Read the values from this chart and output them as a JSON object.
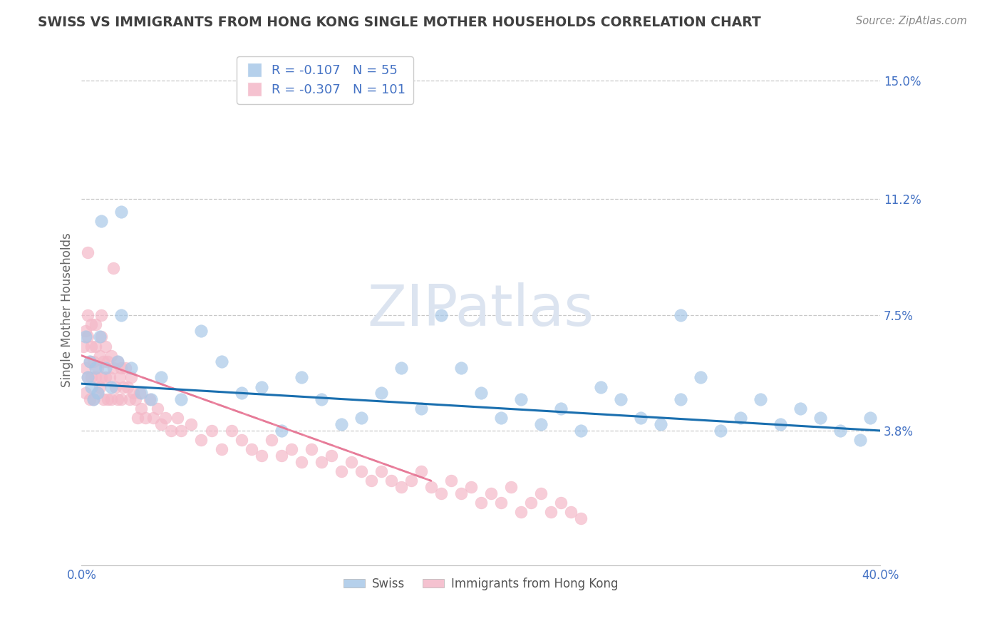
{
  "title": "SWISS VS IMMIGRANTS FROM HONG KONG SINGLE MOTHER HOUSEHOLDS CORRELATION CHART",
  "source": "Source: ZipAtlas.com",
  "ylabel": "Single Mother Households",
  "xlabel": "",
  "xlim": [
    0.0,
    0.4
  ],
  "ylim": [
    -0.005,
    0.158
  ],
  "yticks": [
    0.038,
    0.075,
    0.112,
    0.15
  ],
  "ytick_labels": [
    "3.8%",
    "7.5%",
    "11.2%",
    "15.0%"
  ],
  "xticks": [
    0.0,
    0.05,
    0.1,
    0.15,
    0.2,
    0.25,
    0.3,
    0.35,
    0.4
  ],
  "xtick_labels": [
    "0.0%",
    "",
    "",
    "",
    "",
    "",
    "",
    "",
    "40.0%"
  ],
  "swiss_R": -0.107,
  "swiss_N": 55,
  "hk_R": -0.307,
  "hk_N": 101,
  "swiss_color": "#a8c8e8",
  "hk_color": "#f4b8c8",
  "swiss_line_color": "#1a6faf",
  "hk_line_color": "#e87090",
  "hk_line_dashed_color": "#e0b0c0",
  "background_color": "#ffffff",
  "grid_color": "#c8c8c8",
  "axis_color": "#aaaaaa",
  "title_color": "#404040",
  "source_color": "#888888",
  "label_color": "#4472c4",
  "watermark_color": "#dce4f0",
  "legend_label_swiss": "Swiss",
  "legend_label_hk": "Immigrants from Hong Kong",
  "swiss_x": [
    0.002,
    0.003,
    0.004,
    0.005,
    0.006,
    0.007,
    0.008,
    0.009,
    0.01,
    0.012,
    0.015,
    0.018,
    0.02,
    0.025,
    0.03,
    0.035,
    0.04,
    0.05,
    0.06,
    0.07,
    0.08,
    0.09,
    0.1,
    0.11,
    0.12,
    0.13,
    0.14,
    0.15,
    0.16,
    0.17,
    0.18,
    0.19,
    0.2,
    0.21,
    0.22,
    0.23,
    0.24,
    0.25,
    0.26,
    0.27,
    0.28,
    0.29,
    0.3,
    0.31,
    0.32,
    0.33,
    0.34,
    0.35,
    0.36,
    0.37,
    0.38,
    0.39,
    0.395,
    0.02,
    0.3
  ],
  "swiss_y": [
    0.068,
    0.055,
    0.06,
    0.052,
    0.048,
    0.058,
    0.05,
    0.068,
    0.105,
    0.058,
    0.052,
    0.06,
    0.108,
    0.058,
    0.05,
    0.048,
    0.055,
    0.048,
    0.07,
    0.06,
    0.05,
    0.052,
    0.038,
    0.055,
    0.048,
    0.04,
    0.042,
    0.05,
    0.058,
    0.045,
    0.075,
    0.058,
    0.05,
    0.042,
    0.048,
    0.04,
    0.045,
    0.038,
    0.052,
    0.048,
    0.042,
    0.04,
    0.048,
    0.055,
    0.038,
    0.042,
    0.048,
    0.04,
    0.045,
    0.042,
    0.038,
    0.035,
    0.042,
    0.075,
    0.075
  ],
  "hk_x": [
    0.001,
    0.002,
    0.002,
    0.002,
    0.003,
    0.003,
    0.003,
    0.004,
    0.004,
    0.005,
    0.005,
    0.005,
    0.006,
    0.006,
    0.007,
    0.007,
    0.007,
    0.008,
    0.008,
    0.009,
    0.009,
    0.01,
    0.01,
    0.01,
    0.011,
    0.011,
    0.012,
    0.012,
    0.013,
    0.013,
    0.014,
    0.015,
    0.015,
    0.016,
    0.017,
    0.018,
    0.018,
    0.019,
    0.02,
    0.02,
    0.021,
    0.022,
    0.023,
    0.024,
    0.025,
    0.026,
    0.027,
    0.028,
    0.029,
    0.03,
    0.032,
    0.034,
    0.036,
    0.038,
    0.04,
    0.042,
    0.045,
    0.048,
    0.05,
    0.055,
    0.06,
    0.065,
    0.07,
    0.075,
    0.08,
    0.085,
    0.09,
    0.095,
    0.1,
    0.105,
    0.11,
    0.115,
    0.12,
    0.125,
    0.13,
    0.135,
    0.14,
    0.145,
    0.15,
    0.155,
    0.16,
    0.165,
    0.17,
    0.175,
    0.18,
    0.185,
    0.19,
    0.195,
    0.2,
    0.205,
    0.21,
    0.215,
    0.22,
    0.225,
    0.23,
    0.235,
    0.24,
    0.245,
    0.25,
    0.003,
    0.016
  ],
  "hk_y": [
    0.065,
    0.058,
    0.05,
    0.07,
    0.068,
    0.055,
    0.075,
    0.06,
    0.048,
    0.065,
    0.055,
    0.072,
    0.06,
    0.048,
    0.065,
    0.055,
    0.072,
    0.058,
    0.05,
    0.062,
    0.052,
    0.068,
    0.055,
    0.075,
    0.06,
    0.048,
    0.065,
    0.055,
    0.06,
    0.048,
    0.055,
    0.062,
    0.048,
    0.058,
    0.052,
    0.06,
    0.048,
    0.055,
    0.058,
    0.048,
    0.052,
    0.058,
    0.052,
    0.048,
    0.055,
    0.05,
    0.048,
    0.042,
    0.05,
    0.045,
    0.042,
    0.048,
    0.042,
    0.045,
    0.04,
    0.042,
    0.038,
    0.042,
    0.038,
    0.04,
    0.035,
    0.038,
    0.032,
    0.038,
    0.035,
    0.032,
    0.03,
    0.035,
    0.03,
    0.032,
    0.028,
    0.032,
    0.028,
    0.03,
    0.025,
    0.028,
    0.025,
    0.022,
    0.025,
    0.022,
    0.02,
    0.022,
    0.025,
    0.02,
    0.018,
    0.022,
    0.018,
    0.02,
    0.015,
    0.018,
    0.015,
    0.02,
    0.012,
    0.015,
    0.018,
    0.012,
    0.015,
    0.012,
    0.01,
    0.095,
    0.09
  ]
}
